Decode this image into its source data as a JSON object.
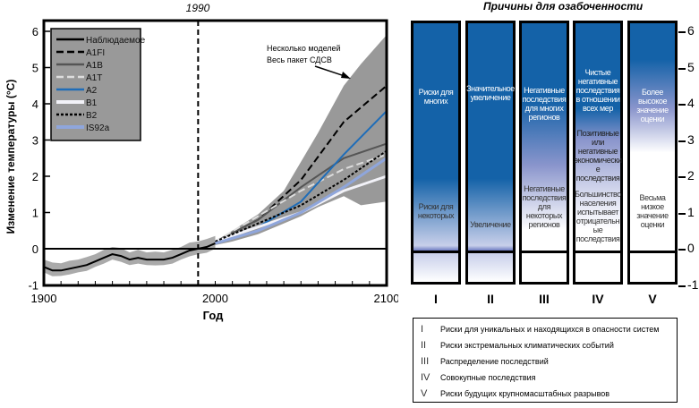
{
  "chart_data": [
    {
      "type": "line",
      "title": "1990",
      "xlabel": "Год",
      "ylabel": "Изменение температуры (°C)",
      "xlim": [
        1900,
        2100
      ],
      "ylim": [
        -1,
        6.3
      ],
      "xticks": [
        "1900",
        "2000",
        "2100"
      ],
      "yticks": [
        "-1",
        "0",
        "1",
        "2",
        "3",
        "4",
        "5",
        "6"
      ],
      "marker_line_year": 1990,
      "annotation": [
        "Несколько моделей",
        "Весь пакет СДСВ"
      ],
      "envelope": {
        "x": [
          2000,
          2010,
          2025,
          2040,
          2050,
          2060,
          2075,
          2085,
          2100
        ],
        "upper": [
          0.2,
          0.5,
          0.95,
          1.6,
          2.4,
          3.2,
          4.5,
          5.1,
          5.9
        ],
        "lower": [
          0.1,
          0.2,
          0.4,
          0.7,
          0.9,
          1.15,
          1.45,
          1.2,
          1.3
        ]
      },
      "observed": {
        "x": [
          1900,
          1905,
          1910,
          1915,
          1920,
          1925,
          1930,
          1935,
          1940,
          1945,
          1950,
          1955,
          1960,
          1965,
          1970,
          1975,
          1980,
          1985,
          1990,
          1995,
          2000
        ],
        "y": [
          -0.5,
          -0.6,
          -0.6,
          -0.55,
          -0.5,
          -0.45,
          -0.35,
          -0.25,
          -0.15,
          -0.2,
          -0.3,
          -0.25,
          -0.3,
          -0.3,
          -0.3,
          -0.25,
          -0.15,
          -0.05,
          0.0,
          0.05,
          0.15
        ]
      },
      "series": [
        {
          "name": "Наблюдаемое",
          "color": "#000000",
          "style": "solid"
        },
        {
          "name": "A1FI",
          "color": "#000000",
          "style": "dash",
          "x": [
            2000,
            2025,
            2050,
            2075,
            2100
          ],
          "y": [
            0.2,
            0.8,
            1.9,
            3.5,
            4.5
          ]
        },
        {
          "name": "A1B",
          "color": "#555555",
          "style": "solid",
          "x": [
            2000,
            2025,
            2050,
            2075,
            2100
          ],
          "y": [
            0.2,
            0.8,
            1.7,
            2.5,
            2.9
          ]
        },
        {
          "name": "A1T",
          "color": "#dddddd",
          "style": "dash",
          "x": [
            2000,
            2025,
            2050,
            2075,
            2100
          ],
          "y": [
            0.2,
            0.9,
            1.6,
            2.2,
            2.6
          ]
        },
        {
          "name": "A2",
          "color": "#1f6db8",
          "style": "solid",
          "x": [
            2000,
            2025,
            2050,
            2075,
            2100
          ],
          "y": [
            0.2,
            0.6,
            1.3,
            2.6,
            3.8
          ]
        },
        {
          "name": "B1",
          "color": "#f2f2f8",
          "style": "solid",
          "x": [
            2000,
            2025,
            2050,
            2075,
            2100
          ],
          "y": [
            0.2,
            0.6,
            1.0,
            1.6,
            2.0
          ]
        },
        {
          "name": "B2",
          "color": "#000000",
          "style": "dot",
          "x": [
            2000,
            2025,
            2050,
            2075,
            2100
          ],
          "y": [
            0.2,
            0.7,
            1.2,
            1.9,
            2.7
          ]
        },
        {
          "name": "IS92a",
          "color": "#8fa6dc",
          "style": "solid",
          "x": [
            2000,
            2025,
            2050,
            2075,
            2100
          ],
          "y": [
            0.15,
            0.5,
            1.0,
            1.7,
            2.5
          ]
        }
      ]
    },
    {
      "type": "table",
      "title": "Причины для озабоченности",
      "yticks": [
        "6",
        "5",
        "4",
        "3",
        "2",
        "1",
        "0",
        "-1"
      ],
      "columns": [
        {
          "id": "I",
          "top": "Риски для многих",
          "bottom": "Риски для некоторых"
        },
        {
          "id": "II",
          "top": "Значительное увеличение",
          "bottom": "Увеличение"
        },
        {
          "id": "III",
          "top": "Негативные последствия для многих регионов",
          "bottom": "Негативные последствия для некоторых регионов"
        },
        {
          "id": "IV",
          "top": "Чистые негативные последствия в отношении всех мер",
          "middle": "Позитивные или негативные экономические последствия",
          "bottom": "Большинство населения испытывает отрицательные последствия"
        },
        {
          "id": "V",
          "top": "Более высокое значение оценки",
          "bottom": "Весьма низкое значение оценки"
        }
      ],
      "legend": [
        {
          "id": "I",
          "text": "Риски для уникальных и находящихся в опасности систем"
        },
        {
          "id": "II",
          "text": "Риски экстремальных климатических событий"
        },
        {
          "id": "III",
          "text": "Распределение последствий"
        },
        {
          "id": "IV",
          "text": "Совокупные последствия"
        },
        {
          "id": "V",
          "text": "Риски будущих крупномасштабных разрывов"
        }
      ]
    }
  ]
}
